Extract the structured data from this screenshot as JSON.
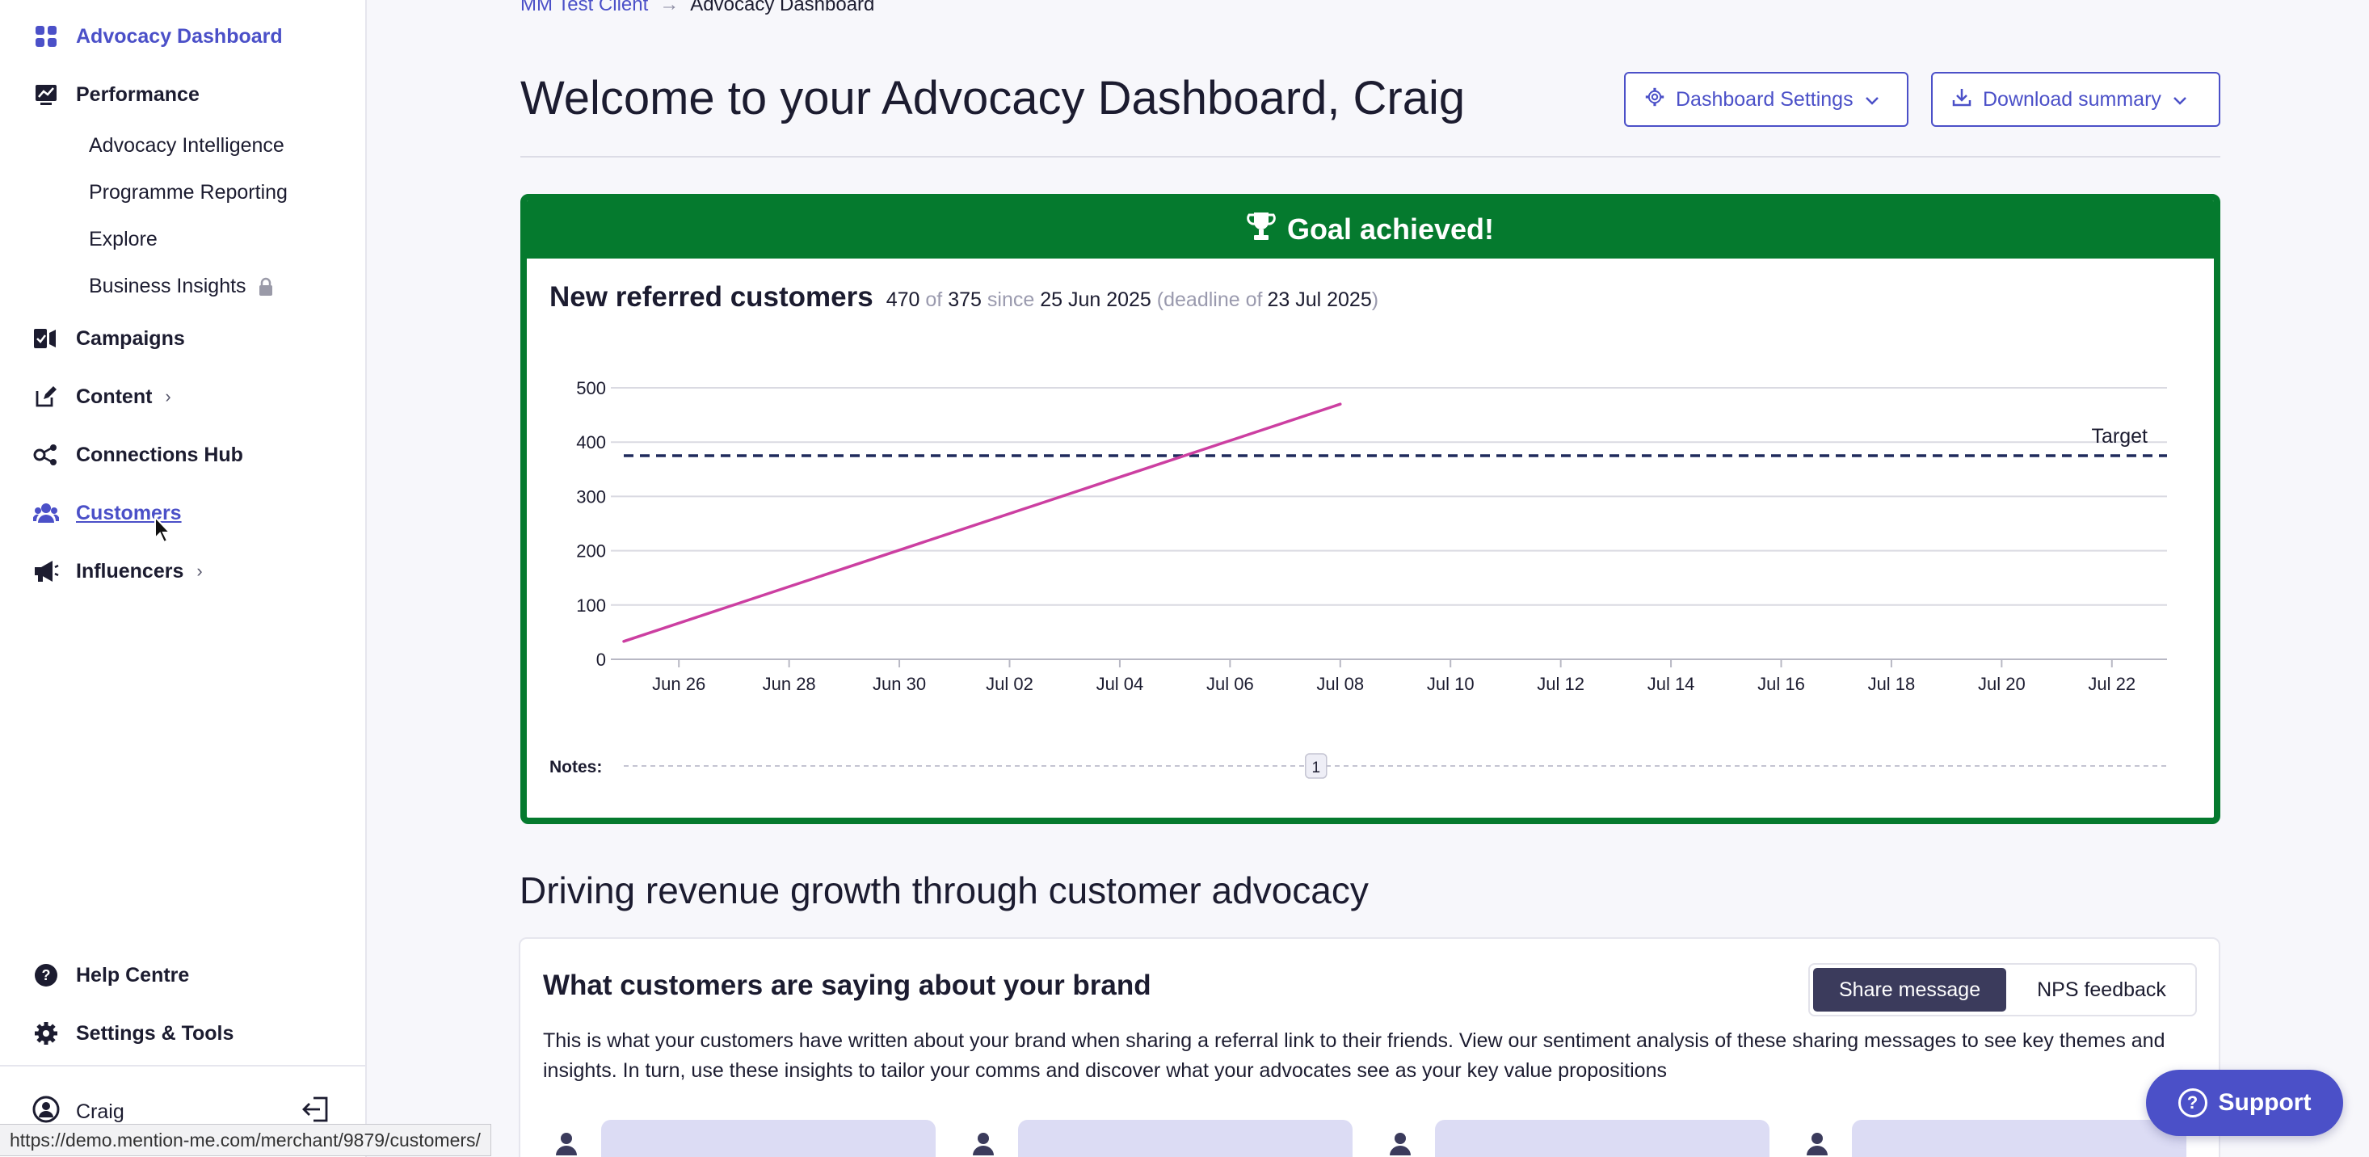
{
  "sidebar": {
    "items": [
      {
        "label": "Advocacy Dashboard",
        "icon": "grid-icon"
      },
      {
        "label": "Performance",
        "icon": "chart-icon"
      },
      {
        "label": "Campaigns",
        "icon": "campaigns-icon"
      },
      {
        "label": "Content",
        "icon": "edit-icon",
        "chevron": "›"
      },
      {
        "label": "Connections Hub",
        "icon": "connections-icon"
      },
      {
        "label": "Customers",
        "icon": "users-icon"
      },
      {
        "label": "Influencers",
        "icon": "megaphone-icon",
        "chevron": "›"
      }
    ],
    "performance_sub": [
      {
        "label": "Advocacy Intelligence"
      },
      {
        "label": "Programme Reporting"
      },
      {
        "label": "Explore"
      },
      {
        "label": "Business Insights",
        "locked": true
      }
    ],
    "bottom": [
      {
        "label": "Help Centre",
        "icon": "help-icon"
      },
      {
        "label": "Settings & Tools",
        "icon": "gear-icon"
      }
    ],
    "user": {
      "name": "Craig"
    }
  },
  "breadcrumb": {
    "parent": "MM Test Client",
    "sep": "→",
    "current": "Advocacy Dashboard"
  },
  "header": {
    "title": "Welcome to your Advocacy Dashboard, Craig",
    "settings_label": "Dashboard Settings",
    "download_label": "Download summary"
  },
  "goal": {
    "banner": "Goal achieved!",
    "metric": "New referred customers",
    "value": "470",
    "of_word": "of",
    "target": "375",
    "since_word": "since",
    "start_date": "25 Jun 2025",
    "deadline_open": "(deadline of",
    "deadline_date": "23 Jul 2025",
    "deadline_close": ")",
    "notes_label": "Notes:",
    "note_marker": "1"
  },
  "chart_data": {
    "type": "line",
    "x_tick_labels": [
      "Jun 26",
      "Jun 28",
      "Jun 30",
      "Jul 02",
      "Jul 04",
      "Jul 06",
      "Jul 08",
      "Jul 10",
      "Jul 12",
      "Jul 14",
      "Jul 16",
      "Jul 18",
      "Jul 20",
      "Jul 22"
    ],
    "x_range": [
      "2025-06-25",
      "2025-07-23"
    ],
    "y_ticks": [
      0,
      100,
      200,
      300,
      400,
      500
    ],
    "ylim": [
      0,
      500
    ],
    "series": [
      {
        "x": [
          "2025-06-25",
          "2025-07-08"
        ],
        "values": [
          33,
          470
        ],
        "color": "#cc3fa1"
      }
    ],
    "target_line": {
      "value": 375,
      "label": "Target",
      "color": "#1f2a5c"
    },
    "grid": true
  },
  "section": {
    "title": "Driving revenue growth through customer advocacy"
  },
  "saying": {
    "title": "What customers are saying about your brand",
    "toggle_on": "Share message",
    "toggle_off": "NPS feedback",
    "desc": "This is what your customers have written about your brand when sharing a referral link to their friends. View our sentiment analysis of these sharing messages to see key themes and insights. In turn, use these insights to tailor your comms and discover what your advocates see as your key value propositions"
  },
  "status_url": "https://demo.mention-me.com/merchant/9879/customers/",
  "support_label": "Support",
  "colors": {
    "accent": "#4b50c8",
    "goal_green": "#057a2e",
    "series": "#cc3fa1",
    "target": "#1f2a5c"
  }
}
